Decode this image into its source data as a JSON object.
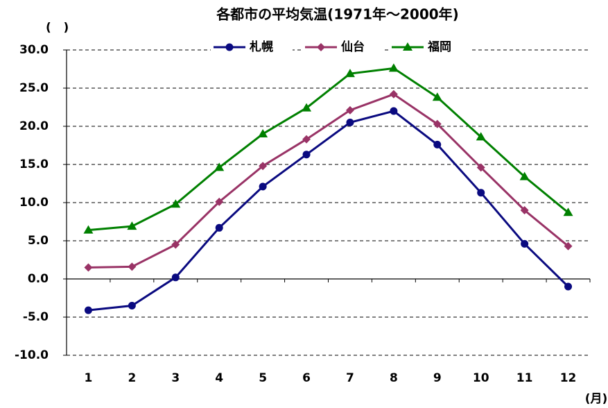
{
  "chart_data": {
    "type": "line",
    "title": "各都市の平均気温(1971年～2000年)",
    "y_label": "(   )",
    "x_label": "(月)",
    "categories": [
      "1",
      "2",
      "3",
      "4",
      "5",
      "6",
      "7",
      "8",
      "9",
      "10",
      "11",
      "12"
    ],
    "series": [
      {
        "name": "札幌",
        "color": "#0a0a80",
        "marker": "circle",
        "values": [
          -4.1,
          -3.5,
          0.2,
          6.7,
          12.1,
          16.3,
          20.5,
          22.0,
          17.6,
          11.3,
          4.6,
          -1.0
        ]
      },
      {
        "name": "仙台",
        "color": "#993366",
        "marker": "diamond",
        "values": [
          1.5,
          1.6,
          4.5,
          10.1,
          14.8,
          18.3,
          22.1,
          24.2,
          20.3,
          14.6,
          9.0,
          4.3
        ]
      },
      {
        "name": "福岡",
        "color": "#008000",
        "marker": "triangle",
        "values": [
          6.4,
          6.9,
          9.8,
          14.6,
          19.0,
          22.4,
          26.9,
          27.6,
          23.8,
          18.6,
          13.4,
          8.7
        ]
      }
    ],
    "ylim": [
      -10,
      30
    ],
    "yticks": [
      {
        "value": -10,
        "label": "-10.0"
      },
      {
        "value": -5,
        "label": "-5.0"
      },
      {
        "value": 0,
        "label": "0.0"
      },
      {
        "value": 5,
        "label": "5.0"
      },
      {
        "value": 10,
        "label": "10.0"
      },
      {
        "value": 15,
        "label": "15.0"
      },
      {
        "value": 20,
        "label": "20.0"
      },
      {
        "value": 25,
        "label": "25.0"
      },
      {
        "value": 30,
        "label": "30.0"
      }
    ],
    "grid": true,
    "legend": "top"
  }
}
